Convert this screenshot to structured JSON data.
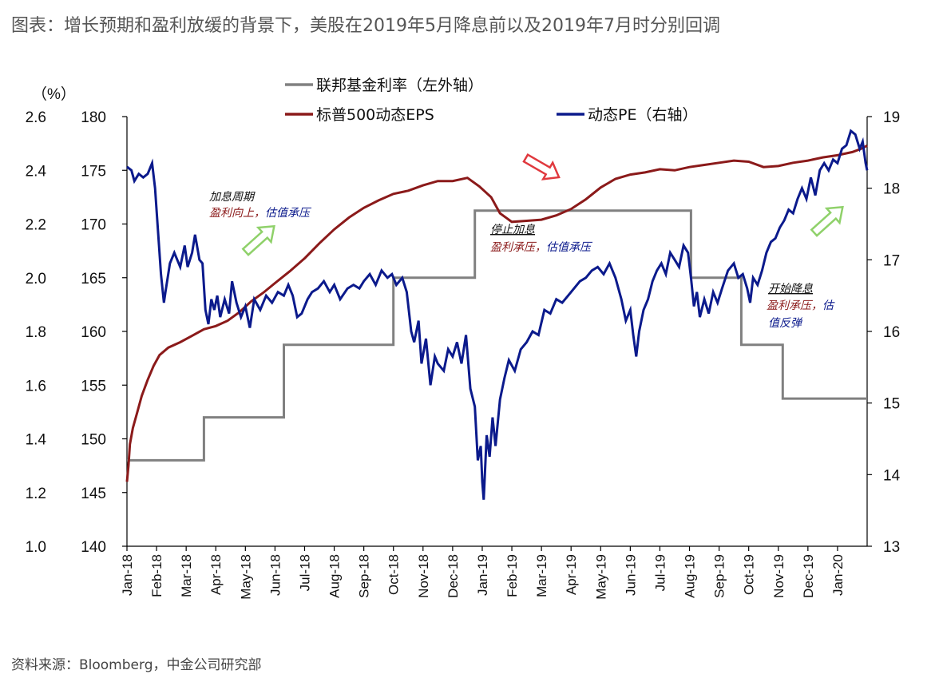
{
  "page": {
    "title": "图表：增长预期和盈利放缓的背景下，美股在2019年5月降息前以及2019年7月时分别回调",
    "source": "资料来源：Bloomberg，中金公司研究部"
  },
  "chart_data": {
    "type": "line",
    "unit_label": "（%）",
    "legend": {
      "fed": "联邦基金利率（左外轴）",
      "eps": "标普500动态EPS",
      "pe": "动态PE（右轴）"
    },
    "axes": {
      "rate": {
        "ticks": [
          "1.0",
          "1.2",
          "1.4",
          "1.6",
          "1.8",
          "2.0",
          "2.2",
          "2.4",
          "2.6"
        ],
        "range": [
          1.0,
          2.6
        ]
      },
      "eps": {
        "ticks": [
          "140",
          "145",
          "150",
          "155",
          "160",
          "165",
          "170",
          "175",
          "180"
        ],
        "range": [
          140,
          180
        ]
      },
      "pe": {
        "ticks": [
          "13",
          "14",
          "15",
          "16",
          "17",
          "18",
          "19"
        ],
        "range": [
          13,
          19
        ]
      }
    },
    "x_ticks": [
      "Jan-18",
      "Feb-18",
      "Mar-18",
      "Apr-18",
      "May-18",
      "Jun-18",
      "Jul-18",
      "Aug-18",
      "Sep-18",
      "Oct-18",
      "Nov-18",
      "Dec-18",
      "Jan-19",
      "Feb-19",
      "Mar-19",
      "Apr-19",
      "May-19",
      "Jun-19",
      "Jul-19",
      "Aug-19",
      "Sep-19",
      "Oct-19",
      "Nov-19",
      "Dec-19",
      "Jan-20"
    ],
    "colors": {
      "fed": "#808080",
      "eps": "#8b1a1a",
      "pe": "#0b1a8c",
      "arrow_up": "#8fd16a",
      "arrow_down": "#e0393e"
    },
    "series": {
      "fed_funds_rate": [
        [
          0,
          1.32
        ],
        [
          2.6,
          1.32
        ],
        [
          2.6,
          1.48
        ],
        [
          5.3,
          1.48
        ],
        [
          5.3,
          1.75
        ],
        [
          9.0,
          1.75
        ],
        [
          9.0,
          2.0
        ],
        [
          11.75,
          2.0
        ],
        [
          11.75,
          2.25
        ],
        [
          19.05,
          2.25
        ],
        [
          19.05,
          2.0
        ],
        [
          20.75,
          2.0
        ],
        [
          20.75,
          1.75
        ],
        [
          22.15,
          1.75
        ],
        [
          22.15,
          1.55
        ],
        [
          25.0,
          1.55
        ]
      ],
      "eps_forward": [
        [
          0,
          146.0
        ],
        [
          0.05,
          147.5
        ],
        [
          0.1,
          149.5
        ],
        [
          0.2,
          151.0
        ],
        [
          0.35,
          152.5
        ],
        [
          0.5,
          154.0
        ],
        [
          0.7,
          155.5
        ],
        [
          0.9,
          156.8
        ],
        [
          1.1,
          157.8
        ],
        [
          1.4,
          158.5
        ],
        [
          1.8,
          159.0
        ],
        [
          2.2,
          159.6
        ],
        [
          2.6,
          160.2
        ],
        [
          3.0,
          160.5
        ],
        [
          3.4,
          161.0
        ],
        [
          3.8,
          161.8
        ],
        [
          4.2,
          162.8
        ],
        [
          4.6,
          163.6
        ],
        [
          5.0,
          164.5
        ],
        [
          5.5,
          165.6
        ],
        [
          6.0,
          166.8
        ],
        [
          6.5,
          168.2
        ],
        [
          7.0,
          169.5
        ],
        [
          7.5,
          170.6
        ],
        [
          8.0,
          171.5
        ],
        [
          8.5,
          172.2
        ],
        [
          9.0,
          172.8
        ],
        [
          9.5,
          173.1
        ],
        [
          10.0,
          173.6
        ],
        [
          10.5,
          174.0
        ],
        [
          11.0,
          174.0
        ],
        [
          11.5,
          174.3
        ],
        [
          11.9,
          173.5
        ],
        [
          12.3,
          172.5
        ],
        [
          12.6,
          171.0
        ],
        [
          13.0,
          170.2
        ],
        [
          13.5,
          170.3
        ],
        [
          14.0,
          170.4
        ],
        [
          14.5,
          170.8
        ],
        [
          15.0,
          171.4
        ],
        [
          15.5,
          172.3
        ],
        [
          16.0,
          173.4
        ],
        [
          16.5,
          174.2
        ],
        [
          17.0,
          174.6
        ],
        [
          17.5,
          174.8
        ],
        [
          18.0,
          175.1
        ],
        [
          18.5,
          175.0
        ],
        [
          19.0,
          175.3
        ],
        [
          19.5,
          175.5
        ],
        [
          20.0,
          175.7
        ],
        [
          20.5,
          175.9
        ],
        [
          21.0,
          175.8
        ],
        [
          21.5,
          175.3
        ],
        [
          22.0,
          175.4
        ],
        [
          22.5,
          175.7
        ],
        [
          23.0,
          175.9
        ],
        [
          23.5,
          176.2
        ],
        [
          24.0,
          176.4
        ],
        [
          24.5,
          176.7
        ],
        [
          24.8,
          177.0
        ],
        [
          25.0,
          177.3
        ]
      ],
      "pe_forward": [
        [
          0,
          18.3
        ],
        [
          0.15,
          18.25
        ],
        [
          0.25,
          18.1
        ],
        [
          0.4,
          18.2
        ],
        [
          0.55,
          18.15
        ],
        [
          0.7,
          18.2
        ],
        [
          0.85,
          18.35
        ],
        [
          0.95,
          18.0
        ],
        [
          1.05,
          17.4
        ],
        [
          1.15,
          16.8
        ],
        [
          1.25,
          16.4
        ],
        [
          1.3,
          16.55
        ],
        [
          1.45,
          16.95
        ],
        [
          1.6,
          17.1
        ],
        [
          1.8,
          16.9
        ],
        [
          1.95,
          17.2
        ],
        [
          2.05,
          16.9
        ],
        [
          2.2,
          17.1
        ],
        [
          2.3,
          17.35
        ],
        [
          2.45,
          17.0
        ],
        [
          2.55,
          16.95
        ],
        [
          2.65,
          16.3
        ],
        [
          2.75,
          16.1
        ],
        [
          2.85,
          16.45
        ],
        [
          2.95,
          16.3
        ],
        [
          3.05,
          16.5
        ],
        [
          3.15,
          16.2
        ],
        [
          3.3,
          16.45
        ],
        [
          3.45,
          16.25
        ],
        [
          3.55,
          16.7
        ],
        [
          3.7,
          16.4
        ],
        [
          3.85,
          16.2
        ],
        [
          4.0,
          16.35
        ],
        [
          4.15,
          16.05
        ],
        [
          4.3,
          16.45
        ],
        [
          4.5,
          16.3
        ],
        [
          4.7,
          16.5
        ],
        [
          4.9,
          16.4
        ],
        [
          5.1,
          16.55
        ],
        [
          5.3,
          16.5
        ],
        [
          5.45,
          16.65
        ],
        [
          5.6,
          16.5
        ],
        [
          5.75,
          16.2
        ],
        [
          5.9,
          16.25
        ],
        [
          6.1,
          16.45
        ],
        [
          6.25,
          16.55
        ],
        [
          6.45,
          16.6
        ],
        [
          6.65,
          16.7
        ],
        [
          6.85,
          16.55
        ],
        [
          7.0,
          16.65
        ],
        [
          7.2,
          16.45
        ],
        [
          7.45,
          16.6
        ],
        [
          7.65,
          16.65
        ],
        [
          7.85,
          16.6
        ],
        [
          8.0,
          16.7
        ],
        [
          8.2,
          16.8
        ],
        [
          8.4,
          16.65
        ],
        [
          8.6,
          16.85
        ],
        [
          8.8,
          16.75
        ],
        [
          8.95,
          16.8
        ],
        [
          9.1,
          16.65
        ],
        [
          9.3,
          16.75
        ],
        [
          9.45,
          16.55
        ],
        [
          9.6,
          16.0
        ],
        [
          9.7,
          15.85
        ],
        [
          9.85,
          16.15
        ],
        [
          9.95,
          15.55
        ],
        [
          10.1,
          15.9
        ],
        [
          10.25,
          15.25
        ],
        [
          10.4,
          15.65
        ],
        [
          10.5,
          15.55
        ],
        [
          10.7,
          15.45
        ],
        [
          10.85,
          15.75
        ],
        [
          11.0,
          15.65
        ],
        [
          11.15,
          15.85
        ],
        [
          11.3,
          15.55
        ],
        [
          11.45,
          15.95
        ],
        [
          11.6,
          15.2
        ],
        [
          11.75,
          14.95
        ],
        [
          11.85,
          14.2
        ],
        [
          11.95,
          14.4
        ],
        [
          12.0,
          13.9
        ],
        [
          12.05,
          13.65
        ],
        [
          12.15,
          14.55
        ],
        [
          12.25,
          14.25
        ],
        [
          12.35,
          14.8
        ],
        [
          12.45,
          14.4
        ],
        [
          12.6,
          15.05
        ],
        [
          12.75,
          15.35
        ],
        [
          12.9,
          15.6
        ],
        [
          13.1,
          15.45
        ],
        [
          13.3,
          15.75
        ],
        [
          13.5,
          15.85
        ],
        [
          13.7,
          16.0
        ],
        [
          13.9,
          15.95
        ],
        [
          14.1,
          16.3
        ],
        [
          14.3,
          16.25
        ],
        [
          14.5,
          16.45
        ],
        [
          14.7,
          16.4
        ],
        [
          14.9,
          16.5
        ],
        [
          15.1,
          16.6
        ],
        [
          15.3,
          16.7
        ],
        [
          15.5,
          16.75
        ],
        [
          15.7,
          16.85
        ],
        [
          15.9,
          16.9
        ],
        [
          16.1,
          16.8
        ],
        [
          16.3,
          16.95
        ],
        [
          16.5,
          16.75
        ],
        [
          16.7,
          16.45
        ],
        [
          16.85,
          16.15
        ],
        [
          17.0,
          16.3
        ],
        [
          17.1,
          15.95
        ],
        [
          17.2,
          15.65
        ],
        [
          17.3,
          16.0
        ],
        [
          17.45,
          16.3
        ],
        [
          17.6,
          16.45
        ],
        [
          17.75,
          16.7
        ],
        [
          17.9,
          16.85
        ],
        [
          18.05,
          16.95
        ],
        [
          18.2,
          16.8
        ],
        [
          18.35,
          17.1
        ],
        [
          18.5,
          17.0
        ],
        [
          18.65,
          16.9
        ],
        [
          18.8,
          17.2
        ],
        [
          18.95,
          17.1
        ],
        [
          19.05,
          16.75
        ],
        [
          19.15,
          16.35
        ],
        [
          19.25,
          16.55
        ],
        [
          19.35,
          16.2
        ],
        [
          19.5,
          16.45
        ],
        [
          19.65,
          16.25
        ],
        [
          19.8,
          16.55
        ],
        [
          19.95,
          16.4
        ],
        [
          20.1,
          16.6
        ],
        [
          20.3,
          16.85
        ],
        [
          20.5,
          16.95
        ],
        [
          20.65,
          16.75
        ],
        [
          20.8,
          16.8
        ],
        [
          20.95,
          16.6
        ],
        [
          21.05,
          16.4
        ],
        [
          21.15,
          16.75
        ],
        [
          21.3,
          16.65
        ],
        [
          21.45,
          16.85
        ],
        [
          21.6,
          17.1
        ],
        [
          21.75,
          17.25
        ],
        [
          21.9,
          17.3
        ],
        [
          22.05,
          17.45
        ],
        [
          22.2,
          17.55
        ],
        [
          22.35,
          17.7
        ],
        [
          22.5,
          17.65
        ],
        [
          22.65,
          17.85
        ],
        [
          22.8,
          18.0
        ],
        [
          22.95,
          17.85
        ],
        [
          23.1,
          18.15
        ],
        [
          23.25,
          17.9
        ],
        [
          23.4,
          18.25
        ],
        [
          23.55,
          18.35
        ],
        [
          23.7,
          18.25
        ],
        [
          23.85,
          18.4
        ],
        [
          24.0,
          18.35
        ],
        [
          24.15,
          18.55
        ],
        [
          24.3,
          18.6
        ],
        [
          24.45,
          18.8
        ],
        [
          24.6,
          18.75
        ],
        [
          24.75,
          18.55
        ],
        [
          24.85,
          18.65
        ],
        [
          24.95,
          18.35
        ],
        [
          25.0,
          18.25
        ]
      ]
    },
    "annotations": [
      {
        "title": "加息周期",
        "line1a": "盈利向上，",
        "line1b": "估值承压",
        "line2a": "",
        "line2b": ""
      },
      {
        "title": "停止加息",
        "line1a": "盈利承压，",
        "line1b": "估值承压",
        "line2a": "",
        "line2b": ""
      },
      {
        "title": "开始降息",
        "line1a": "盈利承压，",
        "line1b": "估",
        "line2a": "",
        "line2b": "值反弹"
      }
    ]
  }
}
